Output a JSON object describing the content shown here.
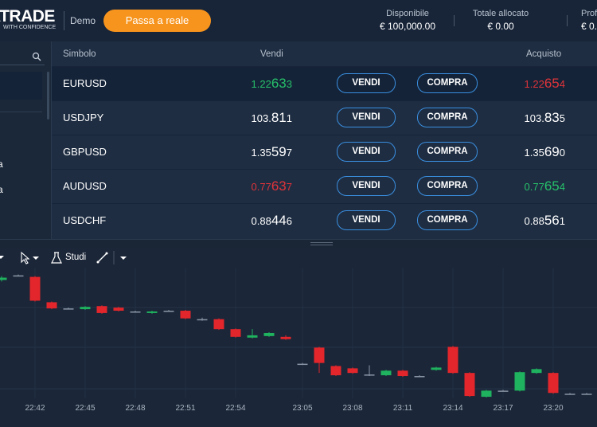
{
  "header": {
    "logo": "ATRADE",
    "tagline": "WITH CONFIDENCE",
    "mode": "Demo",
    "cta": "Passa a reale",
    "stats": [
      {
        "label": "Disponibile",
        "value": "€ 100,000.00"
      },
      {
        "label": "Totale allocato",
        "value": "€ 0.00"
      },
      {
        "label": "Profi",
        "value": "€ 0."
      }
    ]
  },
  "sidebar": {
    "fragments": [
      "a",
      "a"
    ]
  },
  "table": {
    "columns": [
      "Simbolo",
      "Vendi",
      "Acquisto"
    ],
    "sell_button": "VENDI",
    "buy_button": "COMPRA",
    "rows": [
      {
        "symbol": "EURUSD",
        "sell": "1.22633",
        "sell_color": "#27c06a",
        "buy": "1.22654",
        "buy_color": "#e0343a",
        "selected": true
      },
      {
        "symbol": "USDJPY",
        "sell": "103.811",
        "sell_color": "#ffffff",
        "buy": "103.835",
        "buy_color": "#ffffff",
        "selected": false
      },
      {
        "symbol": "GBPUSD",
        "sell": "1.35597",
        "sell_color": "#ffffff",
        "buy": "1.35690",
        "buy_color": "#ffffff",
        "selected": false
      },
      {
        "symbol": "AUDUSD",
        "sell": "0.77637",
        "sell_color": "#e0343a",
        "buy": "0.77654",
        "buy_color": "#27c06a",
        "selected": false
      },
      {
        "symbol": "USDCHF",
        "sell": "0.88446",
        "sell_color": "#ffffff",
        "buy": "0.88561",
        "buy_color": "#ffffff",
        "selected": false
      }
    ]
  },
  "toolbar": {
    "studies": "Studi"
  },
  "chart_data": {
    "type": "candlestick",
    "categories": [
      null,
      null,
      "22:42",
      null,
      null,
      "22:45",
      null,
      null,
      "22:48",
      null,
      null,
      "22:51",
      null,
      null,
      "22:54",
      null,
      null,
      null,
      "23:05",
      null,
      null,
      "23:08",
      null,
      null,
      "23:11",
      null,
      null,
      "23:14",
      null,
      null,
      "23:17",
      null,
      null,
      "23:20",
      null,
      null
    ],
    "open": [
      154,
      160,
      158,
      125,
      117,
      116,
      120,
      118,
      113,
      111,
      114,
      114,
      103,
      103,
      90,
      79,
      81,
      80,
      45,
      66,
      42,
      39,
      31,
      30,
      36,
      29,
      37,
      67,
      33,
      2,
      10,
      10,
      33,
      33,
      6,
      6
    ],
    "high": [
      159,
      161,
      159,
      126,
      118,
      120,
      121,
      119,
      114,
      114,
      115,
      115,
      105,
      104,
      91,
      90,
      86,
      82,
      46,
      67,
      43,
      40,
      43,
      37,
      37,
      30,
      41,
      68,
      34,
      11,
      11,
      35,
      39,
      34,
      7,
      7
    ],
    "low": [
      152,
      159,
      126,
      116,
      116,
      115,
      110,
      113,
      112,
      110,
      113,
      103,
      101,
      89,
      79,
      78,
      80,
      76,
      44,
      33,
      29,
      32,
      29,
      29,
      28,
      28,
      36,
      32,
      2,
      1,
      9,
      9,
      32,
      6,
      5,
      5
    ],
    "close": [
      157,
      160,
      127,
      117,
      117,
      119,
      111,
      114,
      113,
      113,
      114,
      104,
      103,
      90,
      80,
      82,
      85,
      77,
      45,
      46,
      30,
      33,
      31,
      36,
      29,
      29,
      40,
      33,
      3,
      10,
      10,
      34,
      38,
      7,
      6,
      6
    ],
    "ylim": [
      0,
      170
    ],
    "up_color": "#1fb35f",
    "down_color": "#e3262b",
    "flat_color": "#8a96a6"
  }
}
